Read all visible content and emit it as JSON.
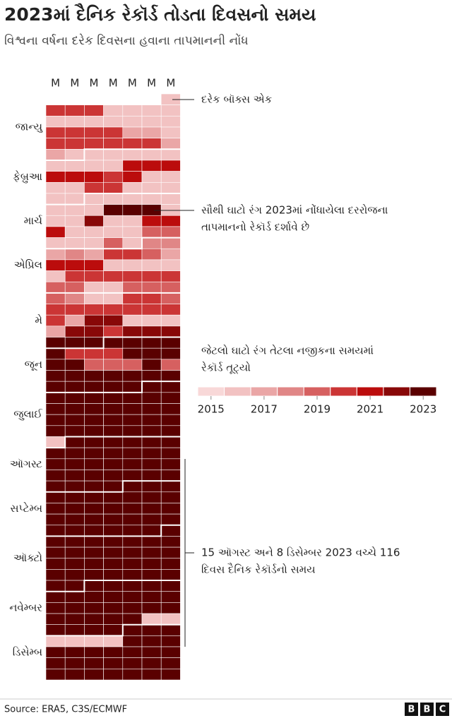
{
  "chart_data": {
    "type": "heatmap",
    "title": "2023માં દૈનિક રેકૉર્ડ તોડતા દિવસનો સમય",
    "subtitle": "વિશ્વના વર્ષના દરેક દિવસના હવાના તાપમાનની નોંધ",
    "columns": [
      "M",
      "M",
      "M",
      "M",
      "M",
      "M",
      "M"
    ],
    "months": [
      "જાન્યુ",
      "ફેબ્રુઆ",
      "માર્ચ",
      "એપ્રિલ",
      "મે",
      "જૂન",
      "જુલાઈ",
      "ઑગસ્ટ",
      "સપ્ટેમ્બ",
      "ઑક્ટો",
      "નવેમ્બર",
      "ડિસેમ્બ"
    ],
    "values": [
      [
        null,
        null,
        null,
        null,
        null,
        null,
        2016
      ],
      [
        2020,
        2020,
        2020,
        2016,
        2016,
        2016,
        2016
      ],
      [
        2016,
        2016,
        2016,
        2016,
        2016,
        2016,
        2016
      ],
      [
        2020,
        2020,
        2020,
        2020,
        2017,
        2017,
        2016
      ],
      [
        2020,
        2020,
        2020,
        2020,
        2020,
        2020,
        2017
      ],
      [
        2017,
        2016,
        2016,
        2016,
        2016,
        2016,
        2016
      ],
      [
        2016,
        2016,
        2016,
        2016,
        2021,
        2021,
        2021
      ],
      [
        2021,
        2021,
        2021,
        2020,
        2021,
        2016,
        2016
      ],
      [
        2016,
        2016,
        2020,
        2020,
        2016,
        2016,
        2016
      ],
      [
        2016,
        2016,
        2016,
        2016,
        2016,
        2016,
        2016
      ],
      [
        2016,
        2016,
        2016,
        2023,
        2023,
        2023,
        2016
      ],
      [
        2016,
        2016,
        2022,
        2016,
        2016,
        2021,
        2021
      ],
      [
        2021,
        2016,
        2016,
        2016,
        2016,
        2019,
        2019
      ],
      [
        2016,
        2016,
        2016,
        2019,
        2016,
        2018,
        2018
      ],
      [
        2017,
        2018,
        2017,
        2020,
        2020,
        2019,
        2017
      ],
      [
        2021,
        2021,
        2021,
        2016,
        2016,
        2016,
        2016
      ],
      [
        2016,
        2020,
        2020,
        2020,
        2020,
        2020,
        2020
      ],
      [
        2019,
        2019,
        2016,
        2016,
        2019,
        2019,
        2019
      ],
      [
        2019,
        2018,
        2016,
        2016,
        2020,
        2020,
        2019
      ],
      [
        2020,
        2020,
        2020,
        2020,
        2020,
        2020,
        2020
      ],
      [
        2020,
        2017,
        2022,
        2022,
        2016,
        2016,
        2016
      ],
      [
        2017,
        2022,
        2022,
        2020,
        2022,
        2022,
        2022
      ],
      [
        2023,
        2023,
        2023,
        2023,
        2023,
        2023,
        2023
      ],
      [
        2023,
        2020,
        2020,
        2020,
        2023,
        2023,
        2023
      ],
      [
        2023,
        2023,
        2019,
        2019,
        2019,
        2023,
        2019
      ],
      [
        2023,
        2023,
        2023,
        2023,
        2023,
        2023,
        2023
      ],
      [
        2023,
        2023,
        2023,
        2023,
        2023,
        2023,
        2023
      ],
      [
        2023,
        2023,
        2023,
        2023,
        2023,
        2023,
        2023
      ],
      [
        2023,
        2023,
        2023,
        2023,
        2023,
        2023,
        2023
      ],
      [
        2023,
        2023,
        2023,
        2023,
        2023,
        2023,
        2023
      ],
      [
        2023,
        2023,
        2023,
        2023,
        2023,
        2023,
        2023
      ],
      [
        2016,
        2023,
        2023,
        2023,
        2023,
        2023,
        2023
      ],
      [
        2023,
        2023,
        2023,
        2023,
        2023,
        2023,
        2023
      ],
      [
        2023,
        2023,
        2023,
        2023,
        2023,
        2023,
        2023
      ],
      [
        2023,
        2023,
        2023,
        2023,
        2023,
        2023,
        2023
      ],
      [
        2023,
        2023,
        2023,
        2023,
        2023,
        2023,
        2023
      ],
      [
        2023,
        2023,
        2023,
        2023,
        2023,
        2023,
        2023
      ],
      [
        2023,
        2023,
        2023,
        2023,
        2023,
        2023,
        2023
      ],
      [
        2023,
        2023,
        2023,
        2023,
        2023,
        2023,
        2023
      ],
      [
        2023,
        2023,
        2023,
        2023,
        2023,
        2023,
        2023
      ],
      [
        2023,
        2023,
        2023,
        2023,
        2023,
        2023,
        2023
      ],
      [
        2023,
        2023,
        2023,
        2023,
        2023,
        2023,
        2023
      ],
      [
        2023,
        2023,
        2023,
        2023,
        2023,
        2023,
        2023
      ],
      [
        2023,
        2023,
        2023,
        2023,
        2023,
        2023,
        2023
      ],
      [
        2023,
        2023,
        2023,
        2023,
        2023,
        2023,
        2023
      ],
      [
        2023,
        2023,
        2023,
        2023,
        2023,
        2023,
        2023
      ],
      [
        2023,
        2023,
        2023,
        2023,
        2023,
        2023,
        2023
      ],
      [
        2023,
        2023,
        2023,
        2023,
        2023,
        2016,
        2016
      ],
      [
        2023,
        2023,
        2023,
        2023,
        2023,
        2023,
        2023
      ],
      [
        2016,
        2016,
        2016,
        2016,
        2023,
        2023,
        2023
      ],
      [
        2023,
        2023,
        2023,
        2023,
        2023,
        2023,
        2023
      ],
      [
        2023,
        2023,
        2023,
        2023,
        2023,
        2023,
        2023
      ],
      [
        2023,
        2023,
        2023,
        2023,
        2023,
        2023,
        2023
      ]
    ],
    "legend": {
      "years": [
        2015,
        2016,
        2017,
        2018,
        2019,
        2020,
        2021,
        2022,
        2023
      ],
      "colors": [
        "#f8d8d8",
        "#f2c2c2",
        "#eaa6a6",
        "#e08686",
        "#d66060",
        "#cb3535",
        "#bb0c0c",
        "#880808",
        "#5a0000"
      ],
      "ticks": [
        2015,
        2017,
        2019,
        2021,
        2023
      ]
    },
    "annotations": [
      "દરેક બૉક્સ એક",
      "સૌથી ઘાટો રંગ 2023માં નોંધાયેલા દરરોજના",
      "તાપમાનનો રેકૉર્ડ દર્શાવે છે",
      "જેટલો ઘાટો રંગ તેટલા નજીકના સમયમાં",
      "રેકૉર્ડ તૂટ્યો",
      "15 ઑગસ્ટ અને 8 ડિસેમ્બર 2023 વચ્ચે 116",
      "દિવસ દૈનિક રેકૉર્ડનો સમય"
    ],
    "source": "Source: ERA5, C3S/ECMWF",
    "logo": [
      "B",
      "B",
      "C"
    ]
  }
}
